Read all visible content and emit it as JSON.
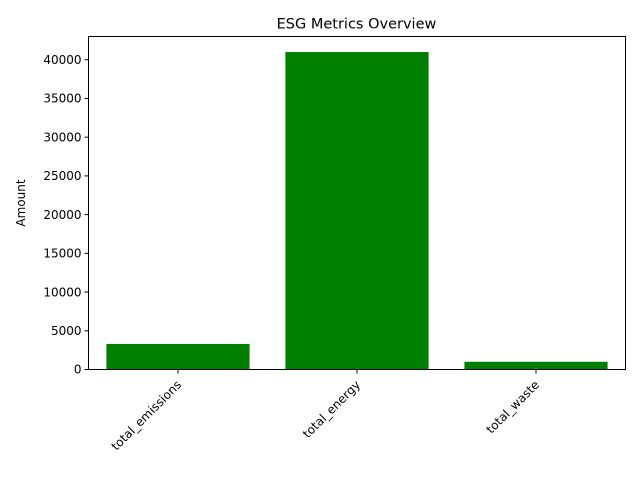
{
  "chart_data": {
    "type": "bar",
    "title": "ESG Metrics Overview",
    "xlabel": "",
    "ylabel": "Amount",
    "categories": [
      "total_emissions",
      "total_energy",
      "total_waste"
    ],
    "values": [
      3300,
      41000,
      1000
    ],
    "ylim": [
      0,
      43000
    ],
    "yticks": [
      0,
      5000,
      10000,
      15000,
      20000,
      25000,
      30000,
      35000,
      40000
    ],
    "bar_color": "#008000",
    "grid": false,
    "xtick_rotation": 45
  }
}
